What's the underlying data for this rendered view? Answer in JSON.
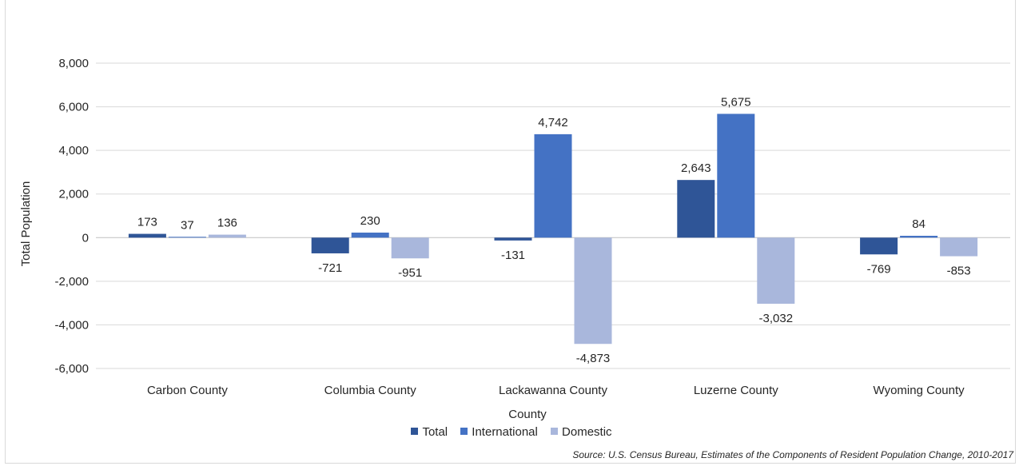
{
  "chart_data": {
    "type": "bar",
    "categories": [
      "Carbon County",
      "Columbia County",
      "Lackawanna County",
      "Luzerne County",
      "Wyoming County"
    ],
    "series": [
      {
        "name": "Total",
        "color": "#2f5597",
        "values": [
          173,
          -721,
          -131,
          2643,
          -769
        ],
        "labels": [
          "173",
          "-721",
          "-131",
          "2,643",
          "-769"
        ]
      },
      {
        "name": "International",
        "color": "#4472c4",
        "values": [
          37,
          230,
          4742,
          5675,
          84
        ],
        "labels": [
          "37",
          "230",
          "4,742",
          "5,675",
          "84"
        ]
      },
      {
        "name": "Domestic",
        "color": "#a9b7dc",
        "values": [
          136,
          -951,
          -4873,
          -3032,
          -853
        ],
        "labels": [
          "136",
          "-951",
          "-4,873",
          "-3,032",
          "-853"
        ]
      }
    ],
    "xlabel": "County",
    "ylabel": "Total Population",
    "ylim": [
      -6000,
      8000
    ],
    "yticks": [
      8000,
      6000,
      4000,
      2000,
      0,
      -2000,
      -4000,
      -6000
    ],
    "ytick_labels": [
      "8,000",
      "6,000",
      "4,000",
      "2,000",
      "0",
      "-2,000",
      "-4,000",
      "-6,000"
    ],
    "grid": true,
    "legend_position": "bottom",
    "source": "Source: U.S. Census Bureau, Estimates of the Components of Resident Population Change, 2010-2017"
  }
}
